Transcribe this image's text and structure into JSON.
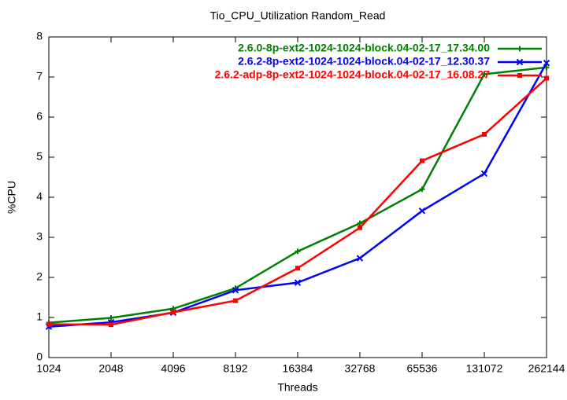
{
  "chart_data": {
    "type": "line",
    "title": "Tio_CPU_Utilization Random_Read",
    "x_label": "Threads",
    "y_label": "%CPU",
    "x": [
      1024,
      2048,
      4096,
      8192,
      16384,
      32768,
      65536,
      131072,
      262144
    ],
    "xscale": "log",
    "xlim": [
      1024,
      262144
    ],
    "xticks": [
      1024,
      2048,
      4096,
      8192,
      16384,
      32768,
      65536,
      131072,
      262144
    ],
    "ylim": [
      0,
      8
    ],
    "yticks": [
      0,
      1,
      2,
      3,
      4,
      5,
      6,
      7,
      8
    ],
    "grid": false,
    "legend_position": "top right",
    "series": [
      {
        "name": "2.6.0-8p-ext2-1024-1024-block.04-02-17_17.34.00",
        "color": "#008000",
        "marker": "plus",
        "values": [
          0.87,
          0.99,
          1.22,
          1.73,
          2.65,
          3.35,
          4.2,
          7.07,
          7.24
        ]
      },
      {
        "name": "2.6.2-8p-ext2-1024-1024-block.04-02-17_12.30.37",
        "color": "#0000ff",
        "marker": "cross",
        "values": [
          0.77,
          0.88,
          1.12,
          1.68,
          1.87,
          2.48,
          3.66,
          4.59,
          7.35
        ]
      },
      {
        "name": "2.6.2-adp-8p-ext2-1024-1024-block.04-02-17_16.08.27",
        "color": "#ff0000",
        "marker": "square",
        "values": [
          0.83,
          0.82,
          1.13,
          1.42,
          2.23,
          3.24,
          4.91,
          5.57,
          6.97
        ]
      }
    ]
  }
}
